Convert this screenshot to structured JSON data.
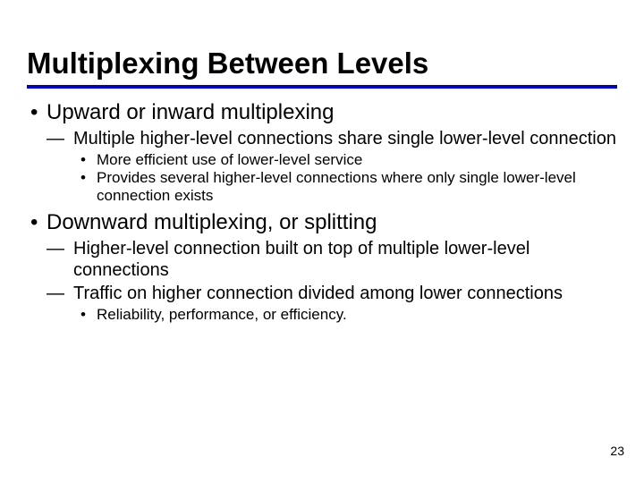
{
  "title": "Multiplexing Between Levels",
  "rule_color": "#0000cc",
  "bullets": [
    {
      "text": "Upward or inward multiplexing",
      "sub": [
        {
          "text": "Multiple higher-level connections share single lower-level connection",
          "sub": [
            {
              "text": "More efficient use of lower-level service"
            },
            {
              "text": "Provides several higher-level connections where only single lower-level connection exists"
            }
          ]
        }
      ]
    },
    {
      "text": "Downward multiplexing, or splitting",
      "sub": [
        {
          "text": "Higher-level connection built on top of multiple lower-level connections"
        },
        {
          "text": "Traffic on higher connection divided among lower connections",
          "sub": [
            {
              "text": "Reliability, performance, or efficiency."
            }
          ]
        }
      ]
    }
  ],
  "page_number": "23"
}
